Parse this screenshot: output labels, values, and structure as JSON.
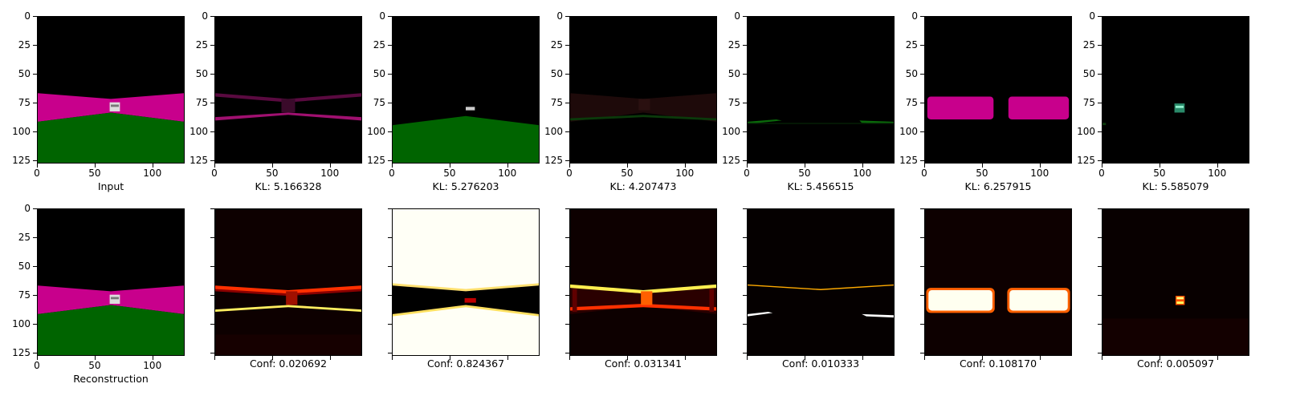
{
  "axis": {
    "y_ticks": [
      "0",
      "25",
      "50",
      "75",
      "100",
      "125"
    ],
    "x_ticks": [
      "0",
      "50",
      "100"
    ]
  },
  "top_row": [
    {
      "caption": "Input"
    },
    {
      "caption": "KL: 5.166328"
    },
    {
      "caption": "KL: 5.276203"
    },
    {
      "caption": "KL: 4.207473"
    },
    {
      "caption": "KL: 5.456515"
    },
    {
      "caption": "KL: 6.257915"
    },
    {
      "caption": "KL: 5.585079"
    }
  ],
  "bottom_row": [
    {
      "caption": "Reconstruction"
    },
    {
      "caption": "Conf: 0.020692"
    },
    {
      "caption": "Conf: 0.824367"
    },
    {
      "caption": "Conf: 0.031341"
    },
    {
      "caption": "Conf: 0.010333"
    },
    {
      "caption": "Conf: 0.108170"
    },
    {
      "caption": "Conf: 0.005097"
    }
  ],
  "colors": {
    "magenta": "#c8008c",
    "green": "#006400",
    "hot_red": "#ff2000",
    "hot_yellow": "#ffff80"
  }
}
